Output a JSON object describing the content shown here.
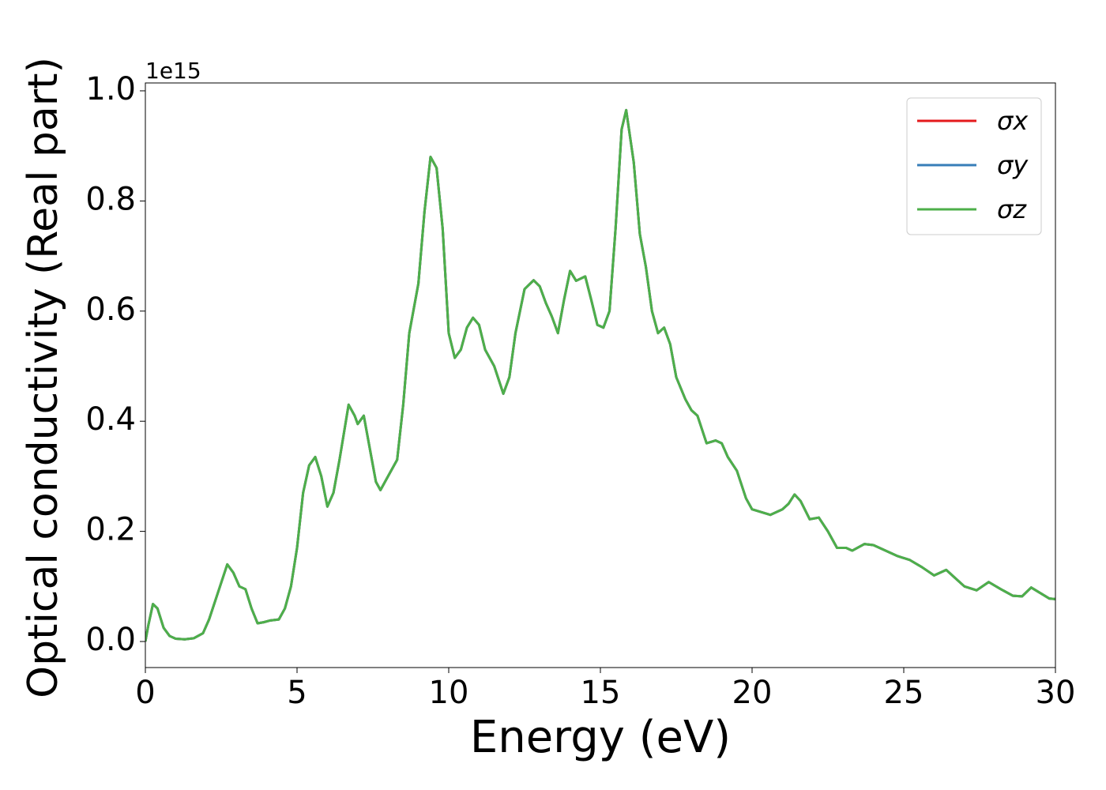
{
  "chart_data": {
    "type": "line",
    "x_label": "Energy (eV)",
    "y_label": "Optical conductivity (Real part)",
    "y_offset_label": "1e15",
    "x": [
      0,
      0.1,
      0.25,
      0.4,
      0.6,
      0.8,
      1.0,
      1.3,
      1.6,
      1.9,
      2.1,
      2.4,
      2.7,
      2.9,
      3.1,
      3.3,
      3.5,
      3.7,
      3.9,
      4.1,
      4.4,
      4.6,
      4.8,
      5.0,
      5.2,
      5.4,
      5.6,
      5.8,
      6.0,
      6.2,
      6.4,
      6.7,
      6.9,
      7.0,
      7.2,
      7.4,
      7.6,
      7.75,
      8.0,
      8.3,
      8.5,
      8.7,
      9.0,
      9.2,
      9.4,
      9.6,
      9.8,
      10.0,
      10.2,
      10.4,
      10.6,
      10.8,
      11.0,
      11.2,
      11.5,
      11.8,
      12.0,
      12.2,
      12.5,
      12.8,
      13.0,
      13.2,
      13.4,
      13.6,
      13.8,
      14.0,
      14.2,
      14.5,
      14.7,
      14.9,
      15.1,
      15.3,
      15.5,
      15.7,
      15.85,
      16.1,
      16.3,
      16.5,
      16.7,
      16.9,
      17.1,
      17.3,
      17.5,
      17.8,
      18.0,
      18.2,
      18.5,
      18.8,
      19.0,
      19.2,
      19.5,
      19.8,
      20.0,
      20.3,
      20.6,
      21.0,
      21.2,
      21.4,
      21.6,
      21.9,
      22.2,
      22.5,
      22.8,
      23.1,
      23.3,
      23.7,
      24.0,
      24.4,
      24.8,
      25.2,
      25.6,
      26.0,
      26.4,
      26.7,
      27.0,
      27.4,
      27.8,
      28.2,
      28.6,
      28.9,
      29.2,
      29.5,
      29.8,
      30.0
    ],
    "series": [
      {
        "name": "σx",
        "color": "#e41a1c",
        "values": [
          0,
          0.03,
          0.068,
          0.06,
          0.025,
          0.01,
          0.005,
          0.004,
          0.006,
          0.015,
          0.04,
          0.09,
          0.14,
          0.125,
          0.1,
          0.095,
          0.06,
          0.033,
          0.035,
          0.038,
          0.04,
          0.06,
          0.1,
          0.17,
          0.27,
          0.32,
          0.335,
          0.3,
          0.245,
          0.27,
          0.33,
          0.43,
          0.41,
          0.395,
          0.41,
          0.35,
          0.29,
          0.275,
          0.3,
          0.33,
          0.43,
          0.56,
          0.65,
          0.78,
          0.88,
          0.86,
          0.75,
          0.56,
          0.515,
          0.53,
          0.57,
          0.588,
          0.575,
          0.53,
          0.5,
          0.45,
          0.48,
          0.56,
          0.64,
          0.656,
          0.645,
          0.615,
          0.59,
          0.56,
          0.62,
          0.673,
          0.655,
          0.663,
          0.62,
          0.575,
          0.57,
          0.6,
          0.75,
          0.93,
          0.965,
          0.87,
          0.74,
          0.68,
          0.6,
          0.56,
          0.57,
          0.54,
          0.48,
          0.44,
          0.42,
          0.41,
          0.36,
          0.365,
          0.36,
          0.335,
          0.31,
          0.26,
          0.24,
          0.235,
          0.23,
          0.24,
          0.25,
          0.267,
          0.255,
          0.222,
          0.225,
          0.2,
          0.17,
          0.17,
          0.165,
          0.177,
          0.175,
          0.165,
          0.155,
          0.148,
          0.135,
          0.12,
          0.13,
          0.115,
          0.1,
          0.093,
          0.108,
          0.095,
          0.083,
          0.082,
          0.098,
          0.088,
          0.078,
          0.077
        ]
      },
      {
        "name": "σy",
        "color": "#377eb8",
        "values": [
          0,
          0.03,
          0.068,
          0.06,
          0.025,
          0.01,
          0.005,
          0.004,
          0.006,
          0.015,
          0.04,
          0.09,
          0.14,
          0.125,
          0.1,
          0.095,
          0.06,
          0.033,
          0.035,
          0.038,
          0.04,
          0.06,
          0.1,
          0.17,
          0.27,
          0.32,
          0.335,
          0.3,
          0.245,
          0.27,
          0.33,
          0.43,
          0.41,
          0.395,
          0.41,
          0.35,
          0.29,
          0.275,
          0.3,
          0.33,
          0.43,
          0.56,
          0.65,
          0.78,
          0.88,
          0.86,
          0.75,
          0.56,
          0.515,
          0.53,
          0.57,
          0.588,
          0.575,
          0.53,
          0.5,
          0.45,
          0.48,
          0.56,
          0.64,
          0.656,
          0.645,
          0.615,
          0.59,
          0.56,
          0.62,
          0.673,
          0.655,
          0.663,
          0.62,
          0.575,
          0.57,
          0.6,
          0.75,
          0.93,
          0.965,
          0.87,
          0.74,
          0.68,
          0.6,
          0.56,
          0.57,
          0.54,
          0.48,
          0.44,
          0.42,
          0.41,
          0.36,
          0.365,
          0.36,
          0.335,
          0.31,
          0.26,
          0.24,
          0.235,
          0.23,
          0.24,
          0.25,
          0.267,
          0.255,
          0.222,
          0.225,
          0.2,
          0.17,
          0.17,
          0.165,
          0.177,
          0.175,
          0.165,
          0.155,
          0.148,
          0.135,
          0.12,
          0.13,
          0.115,
          0.1,
          0.093,
          0.108,
          0.095,
          0.083,
          0.082,
          0.098,
          0.088,
          0.078,
          0.077
        ]
      },
      {
        "name": "σz",
        "color": "#4daf4a",
        "values": [
          0,
          0.03,
          0.068,
          0.06,
          0.025,
          0.01,
          0.005,
          0.004,
          0.006,
          0.015,
          0.04,
          0.09,
          0.14,
          0.125,
          0.1,
          0.095,
          0.06,
          0.033,
          0.035,
          0.038,
          0.04,
          0.06,
          0.1,
          0.17,
          0.27,
          0.32,
          0.335,
          0.3,
          0.245,
          0.27,
          0.33,
          0.43,
          0.41,
          0.395,
          0.41,
          0.35,
          0.29,
          0.275,
          0.3,
          0.33,
          0.43,
          0.56,
          0.65,
          0.78,
          0.88,
          0.86,
          0.75,
          0.56,
          0.515,
          0.53,
          0.57,
          0.588,
          0.575,
          0.53,
          0.5,
          0.45,
          0.48,
          0.56,
          0.64,
          0.656,
          0.645,
          0.615,
          0.59,
          0.56,
          0.62,
          0.673,
          0.655,
          0.663,
          0.62,
          0.575,
          0.57,
          0.6,
          0.75,
          0.93,
          0.965,
          0.87,
          0.74,
          0.68,
          0.6,
          0.56,
          0.57,
          0.54,
          0.48,
          0.44,
          0.42,
          0.41,
          0.36,
          0.365,
          0.36,
          0.335,
          0.31,
          0.26,
          0.24,
          0.235,
          0.23,
          0.24,
          0.25,
          0.267,
          0.255,
          0.222,
          0.225,
          0.2,
          0.17,
          0.17,
          0.165,
          0.177,
          0.175,
          0.165,
          0.155,
          0.148,
          0.135,
          0.12,
          0.13,
          0.115,
          0.1,
          0.093,
          0.108,
          0.095,
          0.083,
          0.082,
          0.098,
          0.088,
          0.078,
          0.077
        ]
      }
    ],
    "xlim": [
      0,
      30
    ],
    "xticks": [
      0,
      5,
      10,
      15,
      20,
      25,
      30
    ],
    "ylim": [
      -0.0473,
      1.0143
    ],
    "yticks": [
      {
        "value": 0,
        "label": "0.0"
      },
      0.2,
      0.4,
      0.6,
      0.8,
      {
        "value": 1,
        "label": "1.0"
      }
    ],
    "grid": false,
    "legend": "upper right"
  }
}
